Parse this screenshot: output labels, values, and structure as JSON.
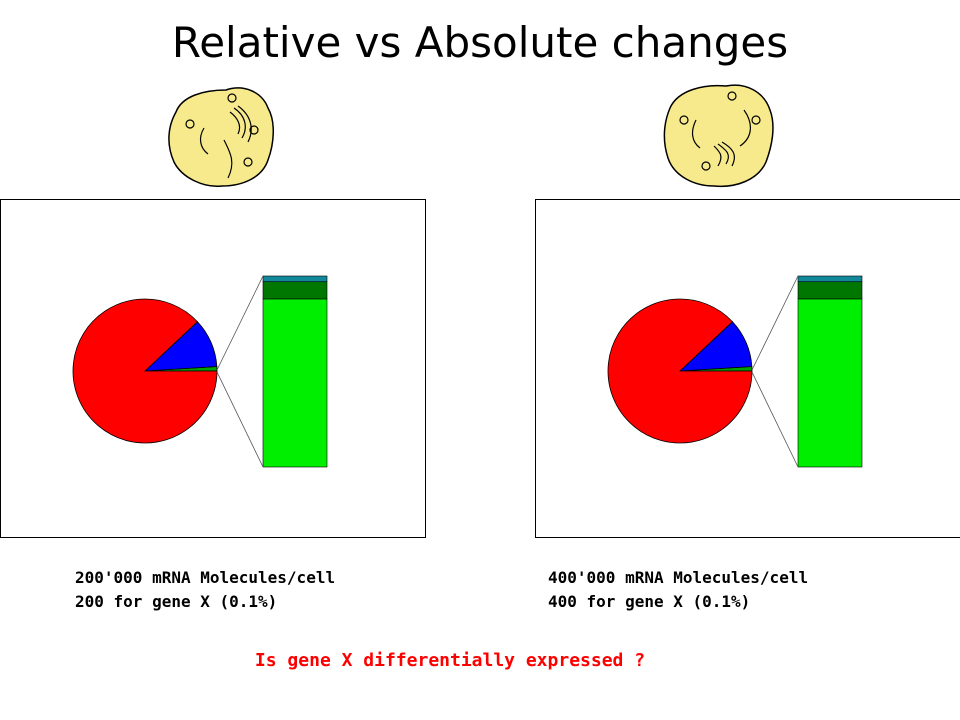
{
  "title": "Relative vs Absolute changes",
  "colors": {
    "pie_major": "#ff0000",
    "pie_minor": "#0000ff",
    "pie_tiny": "#00a000",
    "bar_main": "#00ee00",
    "bar_mid": "#007700",
    "bar_top": "#118899",
    "cell_fill": "#f7ea8d",
    "question": "#ff0000"
  },
  "panels": [
    {
      "caption_line1": "200'000 mRNA Molecules/cell",
      "caption_line2": "200 for gene X (0.1%)",
      "cell_icon": "cell-icon"
    },
    {
      "caption_line1": "400'000 mRNA Molecules/cell",
      "caption_line2": "400 for gene X (0.1%)",
      "cell_icon": "cell-icon"
    }
  ],
  "question": "Is gene X differentially expressed ?",
  "chart_data": [
    {
      "type": "pie",
      "slices": [
        {
          "name": "",
          "value": 88.0
        },
        {
          "name": "",
          "value": 11.0
        },
        {
          "name": "",
          "value": 1.0
        }
      ],
      "breakdown_bar": [
        {
          "name": "",
          "value": 88
        },
        {
          "name": "",
          "value": 9
        },
        {
          "name": "",
          "value": 3
        }
      ]
    },
    {
      "type": "pie",
      "slices": [
        {
          "name": "",
          "value": 88.0
        },
        {
          "name": "",
          "value": 11.0
        },
        {
          "name": "",
          "value": 1.0
        }
      ],
      "breakdown_bar": [
        {
          "name": "",
          "value": 88
        },
        {
          "name": "",
          "value": 9
        },
        {
          "name": "",
          "value": 3
        }
      ]
    }
  ]
}
